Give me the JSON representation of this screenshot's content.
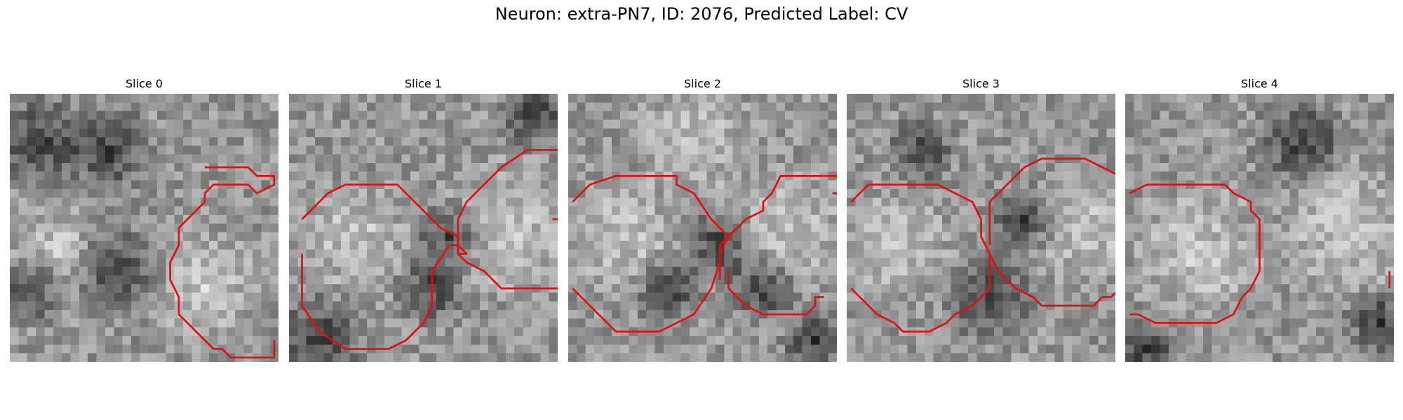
{
  "figure": {
    "title": "Neuron: extra-PN7, ID: 2076, Predicted Label: CV",
    "contour_color": "#e01010"
  },
  "slices": [
    {
      "title": "Slice 0",
      "seed": 11,
      "contours": [
        [
          [
            22,
            8
          ],
          [
            24,
            8
          ],
          [
            27,
            8
          ],
          [
            28,
            9
          ],
          [
            30,
            9
          ],
          [
            30,
            10
          ],
          [
            28,
            11
          ],
          [
            27,
            10
          ],
          [
            23,
            10
          ],
          [
            22,
            11
          ],
          [
            22,
            12
          ],
          [
            20,
            14
          ],
          [
            19,
            15
          ],
          [
            19,
            17
          ],
          [
            18,
            19
          ],
          [
            18,
            21
          ],
          [
            19,
            23
          ],
          [
            19,
            25
          ],
          [
            21,
            27
          ],
          [
            23,
            29
          ],
          [
            24,
            29
          ],
          [
            25,
            30
          ],
          [
            30,
            30
          ],
          [
            30,
            28
          ]
        ]
      ],
      "dark": [
        [
          3,
          5,
          4
        ],
        [
          11,
          6,
          4
        ],
        [
          12,
          20,
          4
        ],
        [
          2,
          22,
          3
        ]
      ],
      "light": [
        [
          22,
          22,
          5
        ],
        [
          5,
          18,
          4
        ]
      ]
    },
    {
      "title": "Slice 1",
      "seed": 23,
      "contours": [
        [
          [
            1,
            14
          ],
          [
            3,
            12
          ],
          [
            4,
            11
          ],
          [
            6,
            10
          ],
          [
            11,
            10
          ],
          [
            12,
            10
          ],
          [
            14,
            12
          ],
          [
            16,
            14
          ],
          [
            17,
            15
          ],
          [
            19,
            16
          ],
          [
            19,
            17
          ],
          [
            20,
            18
          ],
          [
            19,
            18
          ],
          [
            19,
            17
          ],
          [
            18,
            17
          ],
          [
            16,
            20
          ],
          [
            16,
            24
          ],
          [
            15,
            26
          ],
          [
            13,
            28
          ],
          [
            11,
            29
          ],
          [
            6,
            29
          ],
          [
            3,
            27
          ],
          [
            1,
            24
          ],
          [
            1,
            18
          ]
        ],
        [
          [
            19,
            17
          ],
          [
            19,
            14
          ],
          [
            20,
            12
          ],
          [
            22,
            10
          ],
          [
            24,
            8
          ],
          [
            27,
            6
          ],
          [
            28,
            6
          ],
          [
            32,
            6
          ],
          [
            32,
            7
          ],
          [
            33,
            8
          ],
          [
            34,
            8
          ],
          [
            35,
            9
          ],
          [
            35,
            10
          ],
          [
            35,
            12
          ],
          [
            35,
            14
          ],
          [
            30,
            14
          ],
          [
            31,
            14
          ],
          [
            35,
            20
          ],
          [
            34,
            22
          ],
          [
            30,
            22
          ],
          [
            26,
            22
          ],
          [
            24,
            22
          ],
          [
            22,
            20
          ],
          [
            20,
            19
          ],
          [
            19,
            18
          ],
          [
            19,
            17
          ]
        ]
      ],
      "dark": [
        [
          16,
          22,
          3
        ],
        [
          3,
          28,
          4
        ],
        [
          18,
          16,
          3
        ],
        [
          28,
          2,
          3
        ]
      ],
      "light": [
        [
          7,
          16,
          5
        ],
        [
          25,
          15,
          6
        ]
      ]
    },
    {
      "title": "Slice 2",
      "seed": 37,
      "contours": [
        [
          [
            0,
            12
          ],
          [
            2,
            10
          ],
          [
            5,
            9
          ],
          [
            10,
            9
          ],
          [
            12,
            9
          ],
          [
            12,
            10
          ],
          [
            14,
            11
          ],
          [
            16,
            14
          ],
          [
            18,
            16
          ],
          [
            17,
            17
          ],
          [
            17,
            19
          ],
          [
            16,
            22
          ],
          [
            14,
            25
          ],
          [
            12,
            26
          ],
          [
            10,
            27
          ],
          [
            5,
            27
          ],
          [
            3,
            25
          ],
          [
            1,
            23
          ],
          [
            0,
            22
          ]
        ],
        [
          [
            17,
            21
          ],
          [
            17,
            18
          ],
          [
            18,
            16
          ],
          [
            20,
            14
          ],
          [
            22,
            13
          ],
          [
            22,
            12
          ],
          [
            23,
            11
          ],
          [
            24,
            9
          ],
          [
            30,
            9
          ],
          [
            31,
            9
          ],
          [
            32,
            10
          ],
          [
            32,
            11
          ],
          [
            30,
            11
          ]
        ],
        [
          [
            29,
            23
          ],
          [
            28,
            23
          ],
          [
            28,
            24
          ],
          [
            27,
            25
          ],
          [
            22,
            25
          ],
          [
            20,
            24
          ],
          [
            18,
            22
          ],
          [
            18,
            20
          ]
        ]
      ],
      "dark": [
        [
          17,
          17,
          3
        ],
        [
          11,
          22,
          3
        ],
        [
          22,
          22,
          3
        ],
        [
          28,
          28,
          3
        ]
      ],
      "light": [
        [
          6,
          16,
          5
        ],
        [
          14,
          5,
          5
        ],
        [
          25,
          15,
          5
        ]
      ]
    },
    {
      "title": "Slice 3",
      "seed": 53,
      "contours": [
        [
          [
            0,
            12
          ],
          [
            2,
            10
          ],
          [
            5,
            10
          ],
          [
            9,
            10
          ],
          [
            10,
            10
          ],
          [
            12,
            11
          ],
          [
            14,
            12
          ],
          [
            15,
            14
          ],
          [
            15,
            16
          ],
          [
            16,
            18
          ],
          [
            16,
            20
          ],
          [
            16,
            22
          ],
          [
            14,
            24
          ],
          [
            12,
            25
          ],
          [
            11,
            26
          ],
          [
            9,
            27
          ],
          [
            6,
            27
          ],
          [
            5,
            26
          ],
          [
            3,
            25
          ],
          [
            1,
            23
          ],
          [
            0,
            22
          ]
        ],
        [
          [
            16,
            17
          ],
          [
            16,
            12
          ],
          [
            17,
            11
          ],
          [
            19,
            9
          ],
          [
            20,
            8
          ],
          [
            22,
            7
          ],
          [
            27,
            7
          ],
          [
            29,
            8
          ],
          [
            31,
            9
          ],
          [
            32,
            10
          ]
        ],
        [
          [
            32,
            21
          ],
          [
            30,
            23
          ],
          [
            29,
            23
          ],
          [
            28,
            24
          ],
          [
            22,
            24
          ],
          [
            21,
            23
          ],
          [
            19,
            22
          ],
          [
            17,
            20
          ],
          [
            16,
            18
          ]
        ]
      ],
      "dark": [
        [
          16,
          23,
          4
        ],
        [
          8,
          6,
          3
        ],
        [
          20,
          14,
          3
        ]
      ],
      "light": [
        [
          5,
          17,
          5
        ],
        [
          27,
          15,
          5
        ]
      ]
    },
    {
      "title": "Slice 4",
      "seed": 71,
      "contours": [
        [
          [
            0,
            11
          ],
          [
            2,
            10
          ],
          [
            5,
            10
          ],
          [
            10,
            10
          ],
          [
            11,
            10
          ],
          [
            12,
            11
          ],
          [
            14,
            12
          ],
          [
            14,
            13
          ],
          [
            15,
            14
          ],
          [
            15,
            16
          ],
          [
            15,
            18
          ],
          [
            15,
            20
          ],
          [
            14,
            22
          ],
          [
            13,
            23
          ],
          [
            12,
            25
          ],
          [
            10,
            26
          ],
          [
            5,
            26
          ],
          [
            3,
            26
          ],
          [
            1,
            25
          ],
          [
            0,
            25
          ]
        ],
        [
          [
            30,
            20
          ],
          [
            30,
            21
          ],
          [
            30,
            22
          ]
        ]
      ],
      "dark": [
        [
          20,
          5,
          4
        ],
        [
          2,
          29,
          3
        ],
        [
          29,
          26,
          3
        ]
      ],
      "light": [
        [
          8,
          18,
          6
        ],
        [
          25,
          15,
          6
        ]
      ]
    }
  ]
}
